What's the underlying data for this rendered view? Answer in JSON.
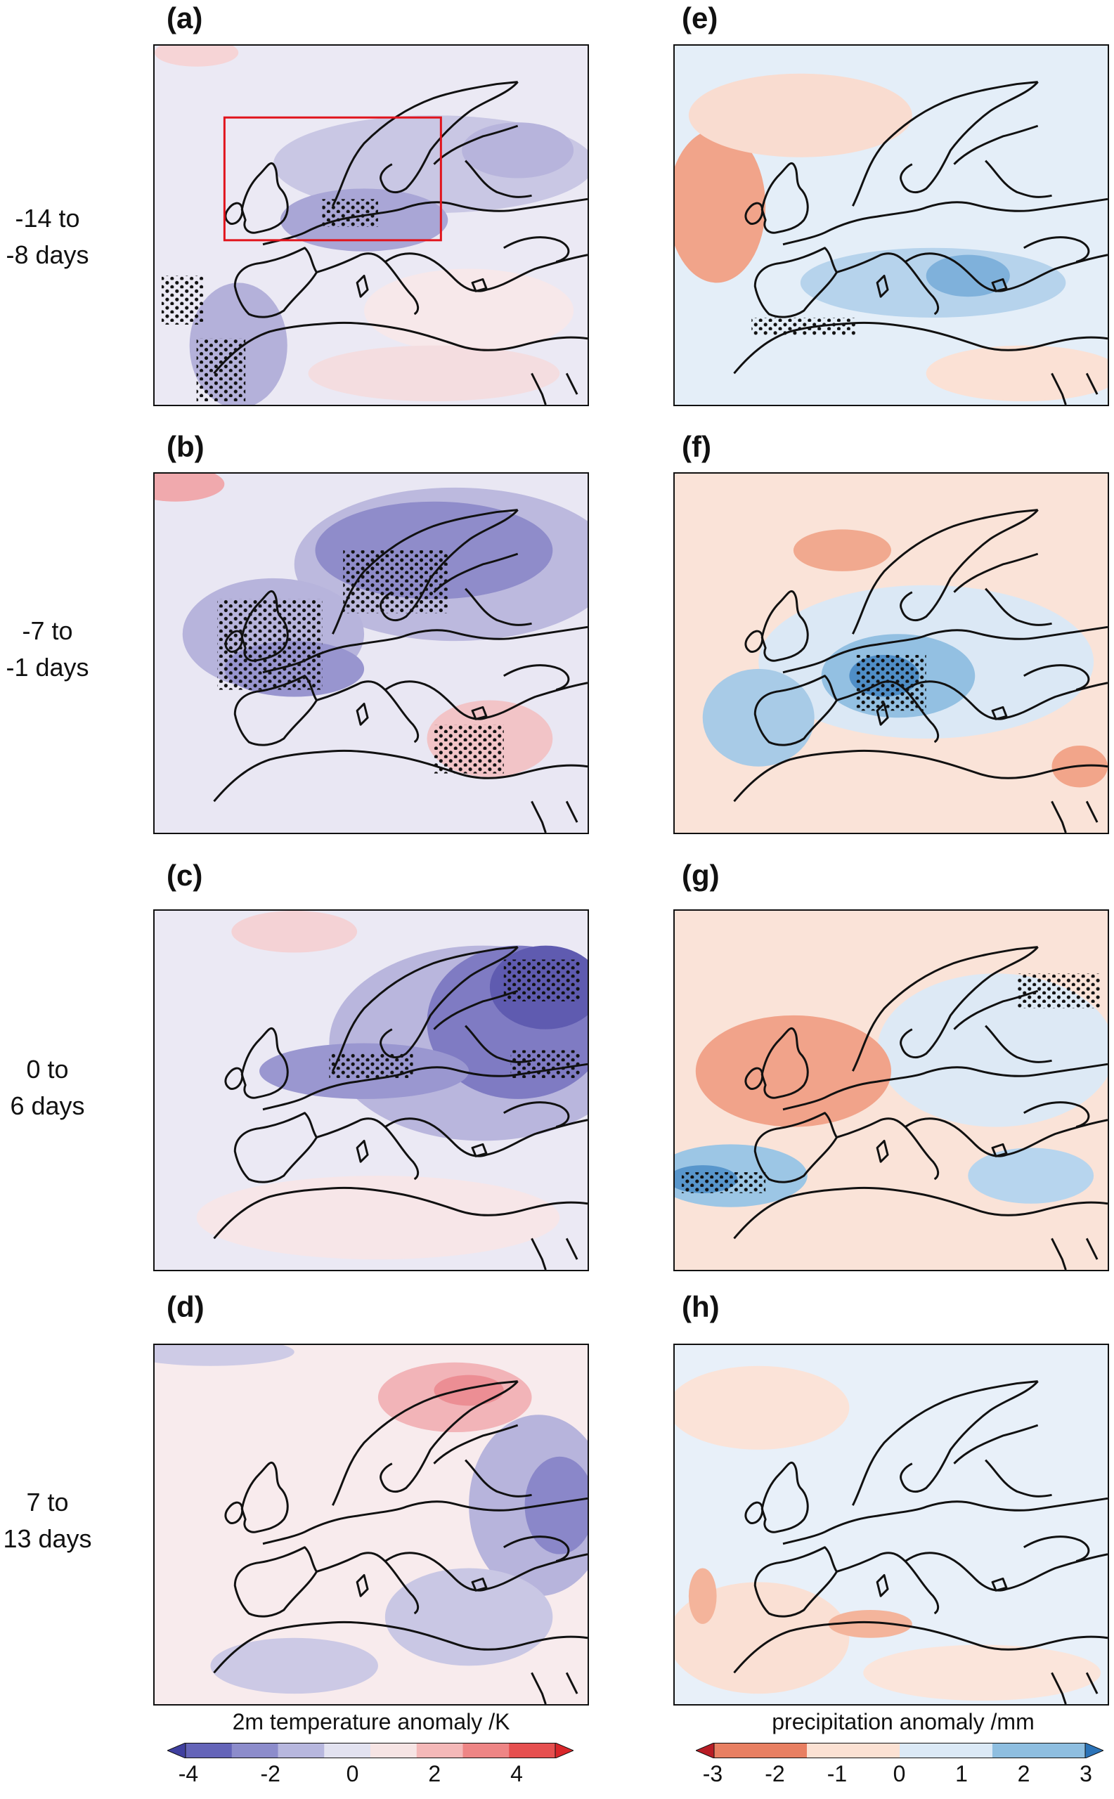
{
  "row_labels": [
    {
      "line1": "-14 to",
      "line2": "-8 days"
    },
    {
      "line1": "-7 to",
      "line2": "-1 days"
    },
    {
      "line1": "0 to",
      "line2": "6 days"
    },
    {
      "line1": "7 to",
      "line2": "13 days"
    }
  ],
  "panels": {
    "a": "(a)",
    "b": "(b)",
    "c": "(c)",
    "d": "(d)",
    "e": "(e)",
    "f": "(f)",
    "g": "(g)",
    "h": "(h)"
  },
  "temperature_colorbar": {
    "title": "2m temperature anomaly /K",
    "ticks": [
      "-4",
      "-2",
      "0",
      "2",
      "4"
    ],
    "colors": [
      "#3f3f9f",
      "#6464b8",
      "#8c8ccb",
      "#b7b7de",
      "#e2e2f0",
      "#f6e4e4",
      "#f4b8b8",
      "#ee8585",
      "#e65050",
      "#d9262a"
    ]
  },
  "precipitation_colorbar": {
    "title": "precipitation anomaly /mm",
    "ticks": [
      "-3",
      "-2",
      "-1",
      "0",
      "1",
      "2",
      "3"
    ],
    "colors": [
      "#b81c25",
      "#e87f62",
      "#fbe1d3",
      "#dbe9f6",
      "#8ebee0",
      "#2b73b8"
    ]
  },
  "colors": {
    "frame": "#111111",
    "highlight_box": "#e1141c",
    "land_outline": "#111111"
  }
}
